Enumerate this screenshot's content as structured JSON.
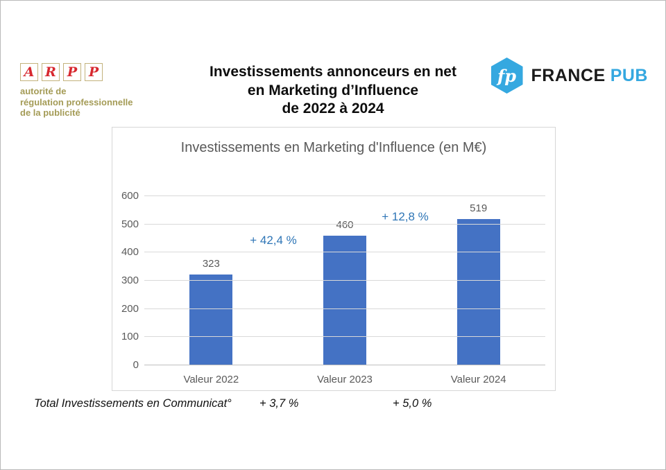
{
  "header": {
    "arpp": {
      "letters": [
        "A",
        "R",
        "P",
        "P"
      ],
      "subtitle_lines": [
        "autorité de",
        "régulation professionnelle",
        "de la publicité"
      ],
      "red": "#d7282f",
      "olive": "#a49b56"
    },
    "title_lines": [
      "Investissements annonceurs en net",
      "en Marketing d’Influence",
      "de 2022 à 2024"
    ],
    "francepub": {
      "monogram": "fp",
      "name_black": "FRANCE",
      "name_blue": "PUB",
      "blue": "#35a8e0"
    }
  },
  "chart_data": {
    "type": "bar",
    "title": "Investissements en Marketing d'Influence (en M€)",
    "categories": [
      "Valeur 2022",
      "Valeur 2023",
      "Valeur 2024"
    ],
    "values": [
      323,
      460,
      519
    ],
    "ylim": [
      0,
      600
    ],
    "yticks": [
      0,
      100,
      200,
      300,
      400,
      500,
      600
    ],
    "grid": true,
    "legend": "none",
    "bar_color": "#4472c4",
    "label_color": "#595959",
    "annotations": [
      {
        "text": "+ 42,4 %",
        "between": [
          "Valeur 2022",
          "Valeur 2023"
        ]
      },
      {
        "text": "+ 12,8 %",
        "between": [
          "Valeur 2023",
          "Valeur 2024"
        ]
      }
    ],
    "annotation_color": "#2e75b6"
  },
  "footer": {
    "label": "Total Investissements en Communicat°",
    "pct_2023": "+ 3,7 %",
    "pct_2024": "+ 5,0 %"
  }
}
